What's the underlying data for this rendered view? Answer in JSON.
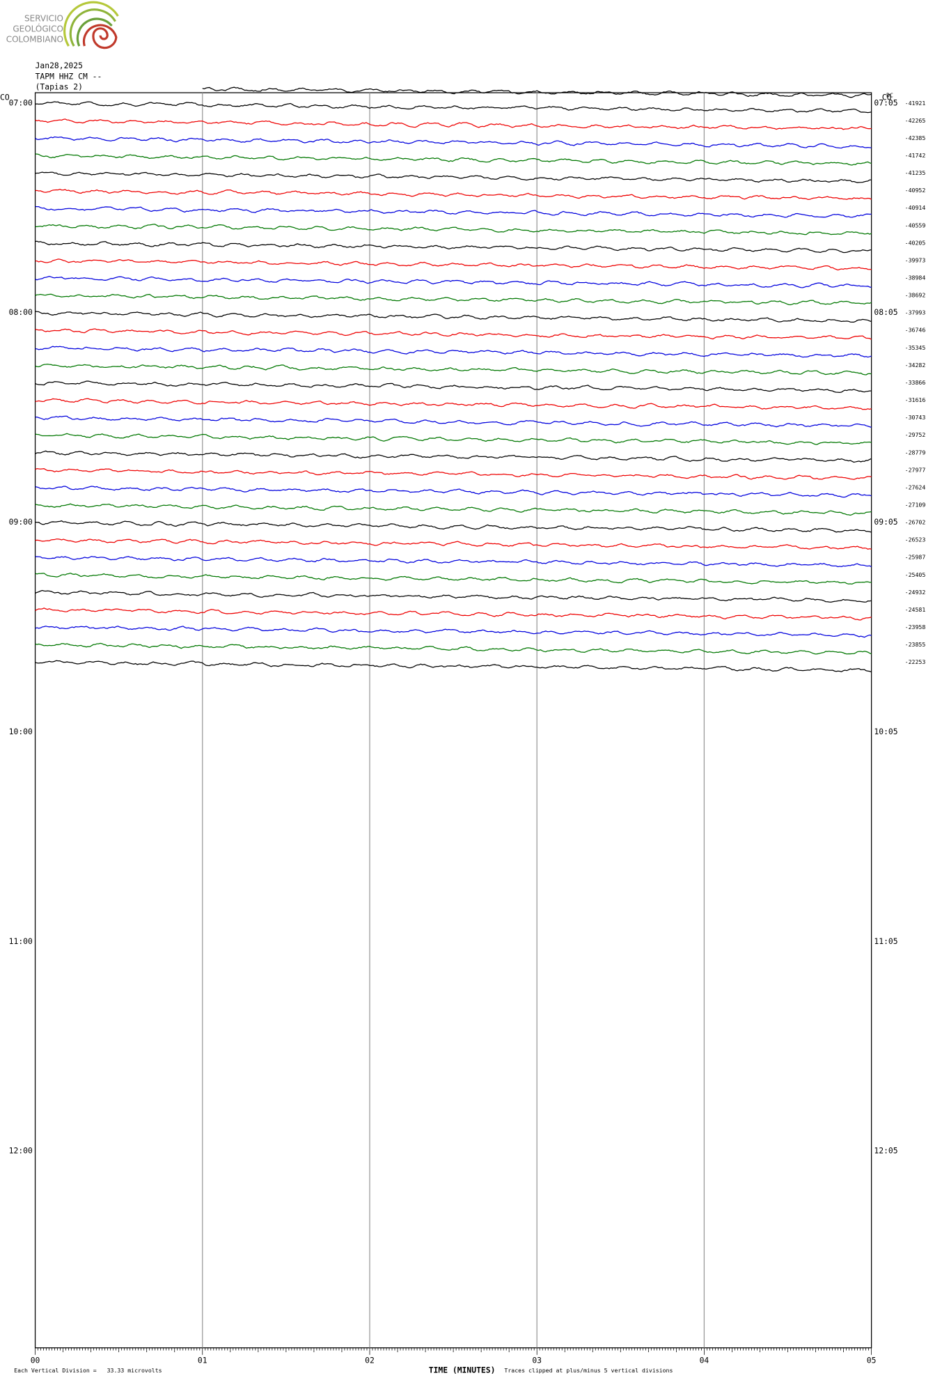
{
  "logo": {
    "lines": [
      "SERVICIO",
      "GEOLÓGICO",
      "COLOMBIANO"
    ]
  },
  "header": {
    "date": "Jan28,2025",
    "station": "TAPM HHZ CM --",
    "location": "(Tapias 2)"
  },
  "left_label": "CO",
  "right_label": "CO",
  "dc_label": "DC",
  "left_times": [
    "07:00",
    "08:00",
    "09:00",
    "10:00",
    "11:00",
    "12:00"
  ],
  "right_times": [
    "07:05",
    "08:05",
    "09:05",
    "10:05",
    "11:05",
    "12:05"
  ],
  "dc_values": [
    -41921,
    -42265,
    -42385,
    -41742,
    -41235,
    -40952,
    -40914,
    -40559,
    -40205,
    -39973,
    -38984,
    -38692,
    -37993,
    -36746,
    -35345,
    -34282,
    -33866,
    -31616,
    -30743,
    -29752,
    -28779,
    -27977,
    -27624,
    -27109,
    -26702,
    -26523,
    -25987,
    -25405,
    -24932,
    -24581,
    -23958,
    -23855,
    -22253
  ],
  "x_ticks": [
    "00",
    "01",
    "02",
    "03",
    "04",
    "05"
  ],
  "footer": {
    "scale": "Each Vertical Division =   33.33 microvolts",
    "axis_title": "TIME (MINUTES)",
    "clip_note": "Traces clipped at plus/minus 5 vertical divisions"
  }
}
